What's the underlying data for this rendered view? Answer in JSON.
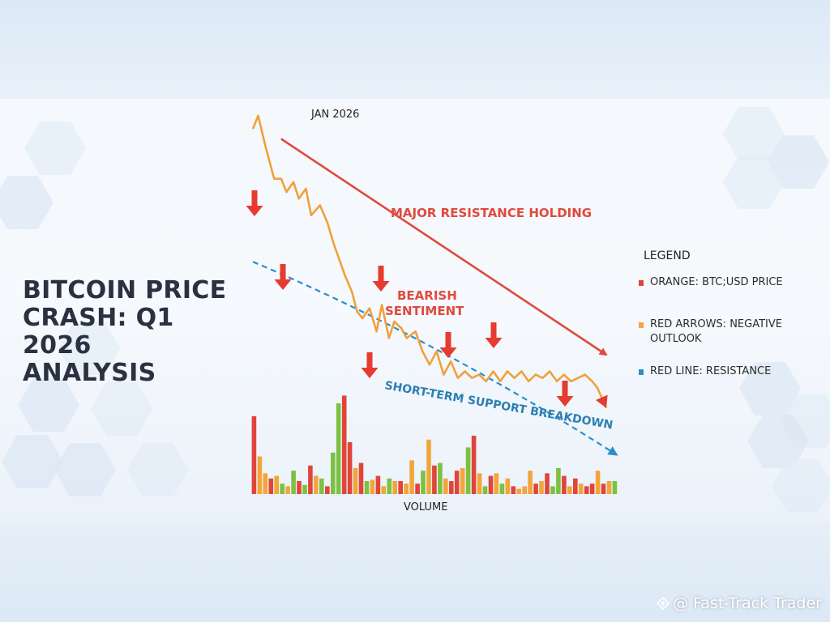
{
  "title_lines": [
    "BITCOIN PRICE",
    "CRASH: Q1 2026",
    "ANALYSIS"
  ],
  "colors": {
    "price_line": "#f0a03c",
    "resistance_line": "#e04a3c",
    "arrow": "#e53b30",
    "support_line": "#2b8fc8",
    "support_text": "#2b7fb3",
    "annotation": "#e04a3c",
    "vol_red": "#e0453a",
    "vol_orange": "#f3a53a",
    "vol_green": "#7cc142"
  },
  "chart_data": {
    "type": "line",
    "xlabel": "VOLUME",
    "top_label": "JAN 2026",
    "series": [
      {
        "name": "ORANGE: BTC;USD PRICE",
        "y": [
          88,
          92,
          83,
          73,
          73,
          69,
          72,
          67,
          70,
          62,
          65,
          60,
          53,
          44,
          39,
          33,
          31,
          34,
          27,
          35,
          25,
          30,
          28,
          25,
          27,
          21,
          17,
          21,
          14,
          18,
          13,
          15,
          13,
          14,
          12,
          15,
          12,
          15,
          13,
          15,
          12,
          14,
          13,
          15,
          12,
          14,
          12,
          13,
          14,
          12,
          10,
          4
        ],
        "x": [
          0,
          1.5,
          3.5,
          6,
          8,
          9.5,
          11.5,
          13,
          15,
          16.5,
          19,
          21,
          23,
          26,
          28,
          29.5,
          31,
          33,
          35,
          36.5,
          38.5,
          40,
          42,
          43.5,
          46,
          48,
          50,
          52,
          54,
          56,
          58,
          60,
          62,
          64,
          66,
          68,
          70,
          72,
          74,
          76,
          78,
          80,
          82,
          84,
          86,
          88,
          90,
          92,
          94,
          96,
          97.5,
          100
        ]
      }
    ],
    "resistance_line": {
      "label": "RED LINE: RESISTANCE",
      "from": [
        8,
        85
      ],
      "to": [
        100,
        20
      ]
    },
    "support_line": {
      "label": "Short-term support breakdown",
      "from": [
        0,
        48
      ],
      "to": [
        100,
        -10
      ]
    },
    "annotations": [
      "MAJOR RESISTANCE HOLDING",
      "BEARISH SENTIMENT",
      "SHORT-TERM SUPPORT BREAKDOWN"
    ],
    "red_arrows_legend": "RED ARROWS: NEGATIVE OUTLOOK",
    "volume": [
      {
        "v": 60,
        "c": "red"
      },
      {
        "v": 29,
        "c": "orange"
      },
      {
        "v": 16,
        "c": "orange"
      },
      {
        "v": 12,
        "c": "red"
      },
      {
        "v": 14,
        "c": "orange"
      },
      {
        "v": 8,
        "c": "green"
      },
      {
        "v": 6,
        "c": "orange"
      },
      {
        "v": 18,
        "c": "green"
      },
      {
        "v": 10,
        "c": "red"
      },
      {
        "v": 7,
        "c": "green"
      },
      {
        "v": 22,
        "c": "red"
      },
      {
        "v": 14,
        "c": "orange"
      },
      {
        "v": 12,
        "c": "green"
      },
      {
        "v": 6,
        "c": "red"
      },
      {
        "v": 32,
        "c": "green"
      },
      {
        "v": 70,
        "c": "green"
      },
      {
        "v": 76,
        "c": "red"
      },
      {
        "v": 40,
        "c": "red"
      },
      {
        "v": 20,
        "c": "orange"
      },
      {
        "v": 24,
        "c": "red"
      },
      {
        "v": 10,
        "c": "green"
      },
      {
        "v": 11,
        "c": "orange"
      },
      {
        "v": 14,
        "c": "red"
      },
      {
        "v": 6,
        "c": "orange"
      },
      {
        "v": 12,
        "c": "green"
      },
      {
        "v": 10,
        "c": "orange"
      },
      {
        "v": 10,
        "c": "red"
      },
      {
        "v": 8,
        "c": "orange"
      },
      {
        "v": 26,
        "c": "orange"
      },
      {
        "v": 8,
        "c": "red"
      },
      {
        "v": 18,
        "c": "green"
      },
      {
        "v": 42,
        "c": "orange"
      },
      {
        "v": 22,
        "c": "red"
      },
      {
        "v": 24,
        "c": "green"
      },
      {
        "v": 12,
        "c": "orange"
      },
      {
        "v": 10,
        "c": "red"
      },
      {
        "v": 18,
        "c": "red"
      },
      {
        "v": 20,
        "c": "orange"
      },
      {
        "v": 36,
        "c": "green"
      },
      {
        "v": 45,
        "c": "red"
      },
      {
        "v": 16,
        "c": "orange"
      },
      {
        "v": 6,
        "c": "green"
      },
      {
        "v": 14,
        "c": "red"
      },
      {
        "v": 16,
        "c": "orange"
      },
      {
        "v": 8,
        "c": "green"
      },
      {
        "v": 12,
        "c": "orange"
      },
      {
        "v": 6,
        "c": "red"
      },
      {
        "v": 4,
        "c": "orange"
      },
      {
        "v": 6,
        "c": "orange"
      },
      {
        "v": 18,
        "c": "orange"
      },
      {
        "v": 8,
        "c": "red"
      },
      {
        "v": 10,
        "c": "orange"
      },
      {
        "v": 16,
        "c": "red"
      },
      {
        "v": 6,
        "c": "green"
      },
      {
        "v": 20,
        "c": "green"
      },
      {
        "v": 14,
        "c": "red"
      },
      {
        "v": 6,
        "c": "orange"
      },
      {
        "v": 12,
        "c": "red"
      },
      {
        "v": 8,
        "c": "orange"
      },
      {
        "v": 6,
        "c": "red"
      },
      {
        "v": 8,
        "c": "red"
      },
      {
        "v": 18,
        "c": "orange"
      },
      {
        "v": 8,
        "c": "red"
      },
      {
        "v": 10,
        "c": "orange"
      },
      {
        "v": 10,
        "c": "green"
      }
    ],
    "legend": {
      "title": "LEGEND",
      "items": [
        {
          "label": "ORANGE: BTC;USD PRICE",
          "color": "#e0453a"
        },
        {
          "label": "RED ARROWS: NEGATIVE OUTLOOK",
          "color": "#f3a53a"
        },
        {
          "label": "RED LINE: RESISTANCE",
          "color": "#2b8fc8"
        }
      ]
    }
  },
  "watermark": "@ Fast-Track Trader"
}
